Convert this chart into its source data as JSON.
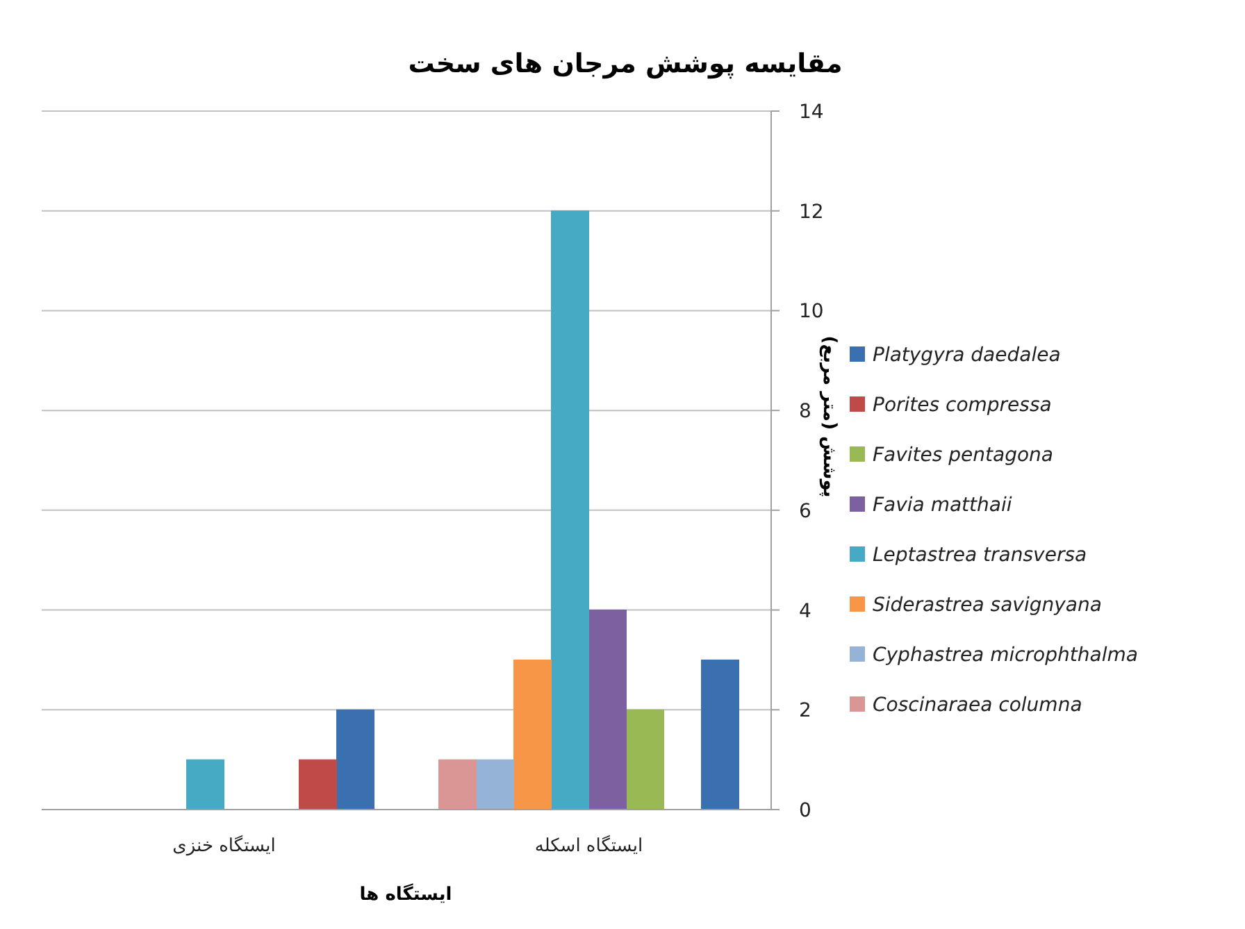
{
  "chart_data": {
    "type": "bar",
    "title": "مقایسه پوشش مرجان های سخت",
    "xlabel": "ایستگاه ها",
    "ylabel": "پوشش (متر مربع)",
    "categories": [
      "ایستگاه خنزی",
      "ایستگاه اسکله"
    ],
    "series": [
      {
        "name": "Platygyra daedalea",
        "color": "#3a6fb0",
        "values": [
          2,
          3
        ]
      },
      {
        "name": "Porites compressa",
        "color": "#be4b48",
        "values": [
          1,
          null
        ]
      },
      {
        "name": "Favites pentagona",
        "color": "#98b954",
        "values": [
          null,
          2
        ]
      },
      {
        "name": "Favia matthaii",
        "color": "#7d60a0",
        "values": [
          null,
          4
        ]
      },
      {
        "name": "Leptastrea transversa",
        "color": "#46aac5",
        "values": [
          1,
          12
        ]
      },
      {
        "name": "Siderastrea savignyana",
        "color": "#f79646",
        "values": [
          null,
          3
        ]
      },
      {
        "name": "Cyphastrea microphthalma",
        "color": "#95b3d7",
        "values": [
          null,
          1
        ]
      },
      {
        "name": "Coscinaraea columna",
        "color": "#d99694",
        "values": [
          null,
          1
        ]
      }
    ],
    "ylim": [
      0,
      14
    ],
    "yticks": [
      0,
      2,
      4,
      6,
      8,
      10,
      12,
      14
    ],
    "grid": "y",
    "legend": "right"
  }
}
